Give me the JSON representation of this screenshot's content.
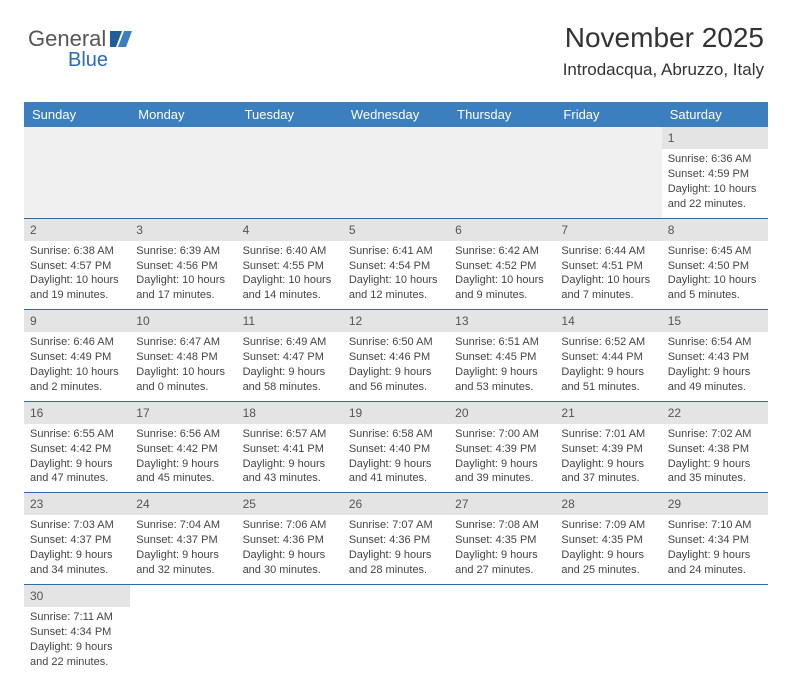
{
  "logo": {
    "text1": "General",
    "text2": "Blue"
  },
  "title": "November 2025",
  "subtitle": "Introdacqua, Abruzzo, Italy",
  "day_headers": [
    "Sunday",
    "Monday",
    "Tuesday",
    "Wednesday",
    "Thursday",
    "Friday",
    "Saturday"
  ],
  "colors": {
    "header_bg": "#3b7fbf",
    "header_fg": "#ffffff",
    "rule": "#2b6cb0",
    "numband": "#e4e4e4",
    "blank": "#f0f0f0"
  },
  "weeks": [
    [
      null,
      null,
      null,
      null,
      null,
      null,
      {
        "n": "1",
        "sr": "Sunrise: 6:36 AM",
        "ss": "Sunset: 4:59 PM",
        "dl": "Daylight: 10 hours and 22 minutes."
      }
    ],
    [
      {
        "n": "2",
        "sr": "Sunrise: 6:38 AM",
        "ss": "Sunset: 4:57 PM",
        "dl": "Daylight: 10 hours and 19 minutes."
      },
      {
        "n": "3",
        "sr": "Sunrise: 6:39 AM",
        "ss": "Sunset: 4:56 PM",
        "dl": "Daylight: 10 hours and 17 minutes."
      },
      {
        "n": "4",
        "sr": "Sunrise: 6:40 AM",
        "ss": "Sunset: 4:55 PM",
        "dl": "Daylight: 10 hours and 14 minutes."
      },
      {
        "n": "5",
        "sr": "Sunrise: 6:41 AM",
        "ss": "Sunset: 4:54 PM",
        "dl": "Daylight: 10 hours and 12 minutes."
      },
      {
        "n": "6",
        "sr": "Sunrise: 6:42 AM",
        "ss": "Sunset: 4:52 PM",
        "dl": "Daylight: 10 hours and 9 minutes."
      },
      {
        "n": "7",
        "sr": "Sunrise: 6:44 AM",
        "ss": "Sunset: 4:51 PM",
        "dl": "Daylight: 10 hours and 7 minutes."
      },
      {
        "n": "8",
        "sr": "Sunrise: 6:45 AM",
        "ss": "Sunset: 4:50 PM",
        "dl": "Daylight: 10 hours and 5 minutes."
      }
    ],
    [
      {
        "n": "9",
        "sr": "Sunrise: 6:46 AM",
        "ss": "Sunset: 4:49 PM",
        "dl": "Daylight: 10 hours and 2 minutes."
      },
      {
        "n": "10",
        "sr": "Sunrise: 6:47 AM",
        "ss": "Sunset: 4:48 PM",
        "dl": "Daylight: 10 hours and 0 minutes."
      },
      {
        "n": "11",
        "sr": "Sunrise: 6:49 AM",
        "ss": "Sunset: 4:47 PM",
        "dl": "Daylight: 9 hours and 58 minutes."
      },
      {
        "n": "12",
        "sr": "Sunrise: 6:50 AM",
        "ss": "Sunset: 4:46 PM",
        "dl": "Daylight: 9 hours and 56 minutes."
      },
      {
        "n": "13",
        "sr": "Sunrise: 6:51 AM",
        "ss": "Sunset: 4:45 PM",
        "dl": "Daylight: 9 hours and 53 minutes."
      },
      {
        "n": "14",
        "sr": "Sunrise: 6:52 AM",
        "ss": "Sunset: 4:44 PM",
        "dl": "Daylight: 9 hours and 51 minutes."
      },
      {
        "n": "15",
        "sr": "Sunrise: 6:54 AM",
        "ss": "Sunset: 4:43 PM",
        "dl": "Daylight: 9 hours and 49 minutes."
      }
    ],
    [
      {
        "n": "16",
        "sr": "Sunrise: 6:55 AM",
        "ss": "Sunset: 4:42 PM",
        "dl": "Daylight: 9 hours and 47 minutes."
      },
      {
        "n": "17",
        "sr": "Sunrise: 6:56 AM",
        "ss": "Sunset: 4:42 PM",
        "dl": "Daylight: 9 hours and 45 minutes."
      },
      {
        "n": "18",
        "sr": "Sunrise: 6:57 AM",
        "ss": "Sunset: 4:41 PM",
        "dl": "Daylight: 9 hours and 43 minutes."
      },
      {
        "n": "19",
        "sr": "Sunrise: 6:58 AM",
        "ss": "Sunset: 4:40 PM",
        "dl": "Daylight: 9 hours and 41 minutes."
      },
      {
        "n": "20",
        "sr": "Sunrise: 7:00 AM",
        "ss": "Sunset: 4:39 PM",
        "dl": "Daylight: 9 hours and 39 minutes."
      },
      {
        "n": "21",
        "sr": "Sunrise: 7:01 AM",
        "ss": "Sunset: 4:39 PM",
        "dl": "Daylight: 9 hours and 37 minutes."
      },
      {
        "n": "22",
        "sr": "Sunrise: 7:02 AM",
        "ss": "Sunset: 4:38 PM",
        "dl": "Daylight: 9 hours and 35 minutes."
      }
    ],
    [
      {
        "n": "23",
        "sr": "Sunrise: 7:03 AM",
        "ss": "Sunset: 4:37 PM",
        "dl": "Daylight: 9 hours and 34 minutes."
      },
      {
        "n": "24",
        "sr": "Sunrise: 7:04 AM",
        "ss": "Sunset: 4:37 PM",
        "dl": "Daylight: 9 hours and 32 minutes."
      },
      {
        "n": "25",
        "sr": "Sunrise: 7:06 AM",
        "ss": "Sunset: 4:36 PM",
        "dl": "Daylight: 9 hours and 30 minutes."
      },
      {
        "n": "26",
        "sr": "Sunrise: 7:07 AM",
        "ss": "Sunset: 4:36 PM",
        "dl": "Daylight: 9 hours and 28 minutes."
      },
      {
        "n": "27",
        "sr": "Sunrise: 7:08 AM",
        "ss": "Sunset: 4:35 PM",
        "dl": "Daylight: 9 hours and 27 minutes."
      },
      {
        "n": "28",
        "sr": "Sunrise: 7:09 AM",
        "ss": "Sunset: 4:35 PM",
        "dl": "Daylight: 9 hours and 25 minutes."
      },
      {
        "n": "29",
        "sr": "Sunrise: 7:10 AM",
        "ss": "Sunset: 4:34 PM",
        "dl": "Daylight: 9 hours and 24 minutes."
      }
    ],
    [
      {
        "n": "30",
        "sr": "Sunrise: 7:11 AM",
        "ss": "Sunset: 4:34 PM",
        "dl": "Daylight: 9 hours and 22 minutes."
      },
      null,
      null,
      null,
      null,
      null,
      null
    ]
  ]
}
